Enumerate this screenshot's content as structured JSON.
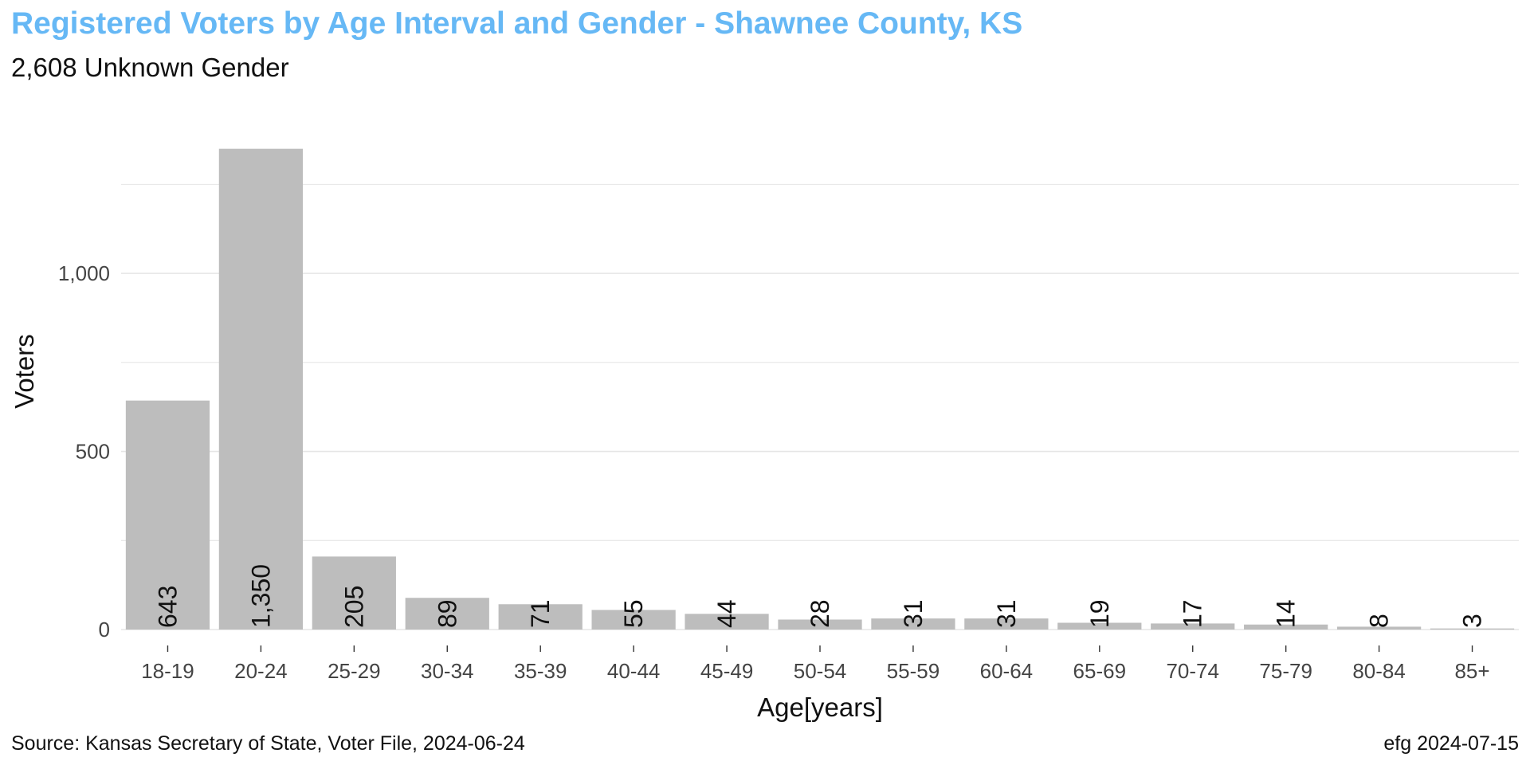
{
  "title": "Registered Voters by Age Interval and Gender - Shawnee County, KS",
  "subtitle": "2,608 Unknown Gender",
  "caption_left": "Source:  Kansas Secretary of State, Voter File, 2024-06-24",
  "caption_right": "efg 2024-07-15",
  "colors": {
    "title": "#66b8f5",
    "bar": "#bdbdbd",
    "grid": "#e6e6e6"
  },
  "chart_data": {
    "type": "bar",
    "categories": [
      "18-19",
      "20-24",
      "25-29",
      "30-34",
      "35-39",
      "40-44",
      "45-49",
      "50-54",
      "55-59",
      "60-64",
      "65-69",
      "70-74",
      "75-79",
      "80-84",
      "85+"
    ],
    "values": [
      643,
      1350,
      205,
      89,
      71,
      55,
      44,
      28,
      31,
      31,
      19,
      17,
      14,
      8,
      3
    ],
    "labels": [
      "643",
      "1,350",
      "205",
      "89",
      "71",
      "55",
      "44",
      "28",
      "31",
      "31",
      "19",
      "17",
      "14",
      "8",
      "3"
    ],
    "xlabel": "Age[years]",
    "ylabel": "Voters",
    "ylim": [
      0,
      1350
    ],
    "yticks": [
      0,
      500,
      1000
    ],
    "ytick_labels": [
      "0",
      "500",
      "1,000"
    ],
    "grid": true,
    "legend": "none"
  }
}
